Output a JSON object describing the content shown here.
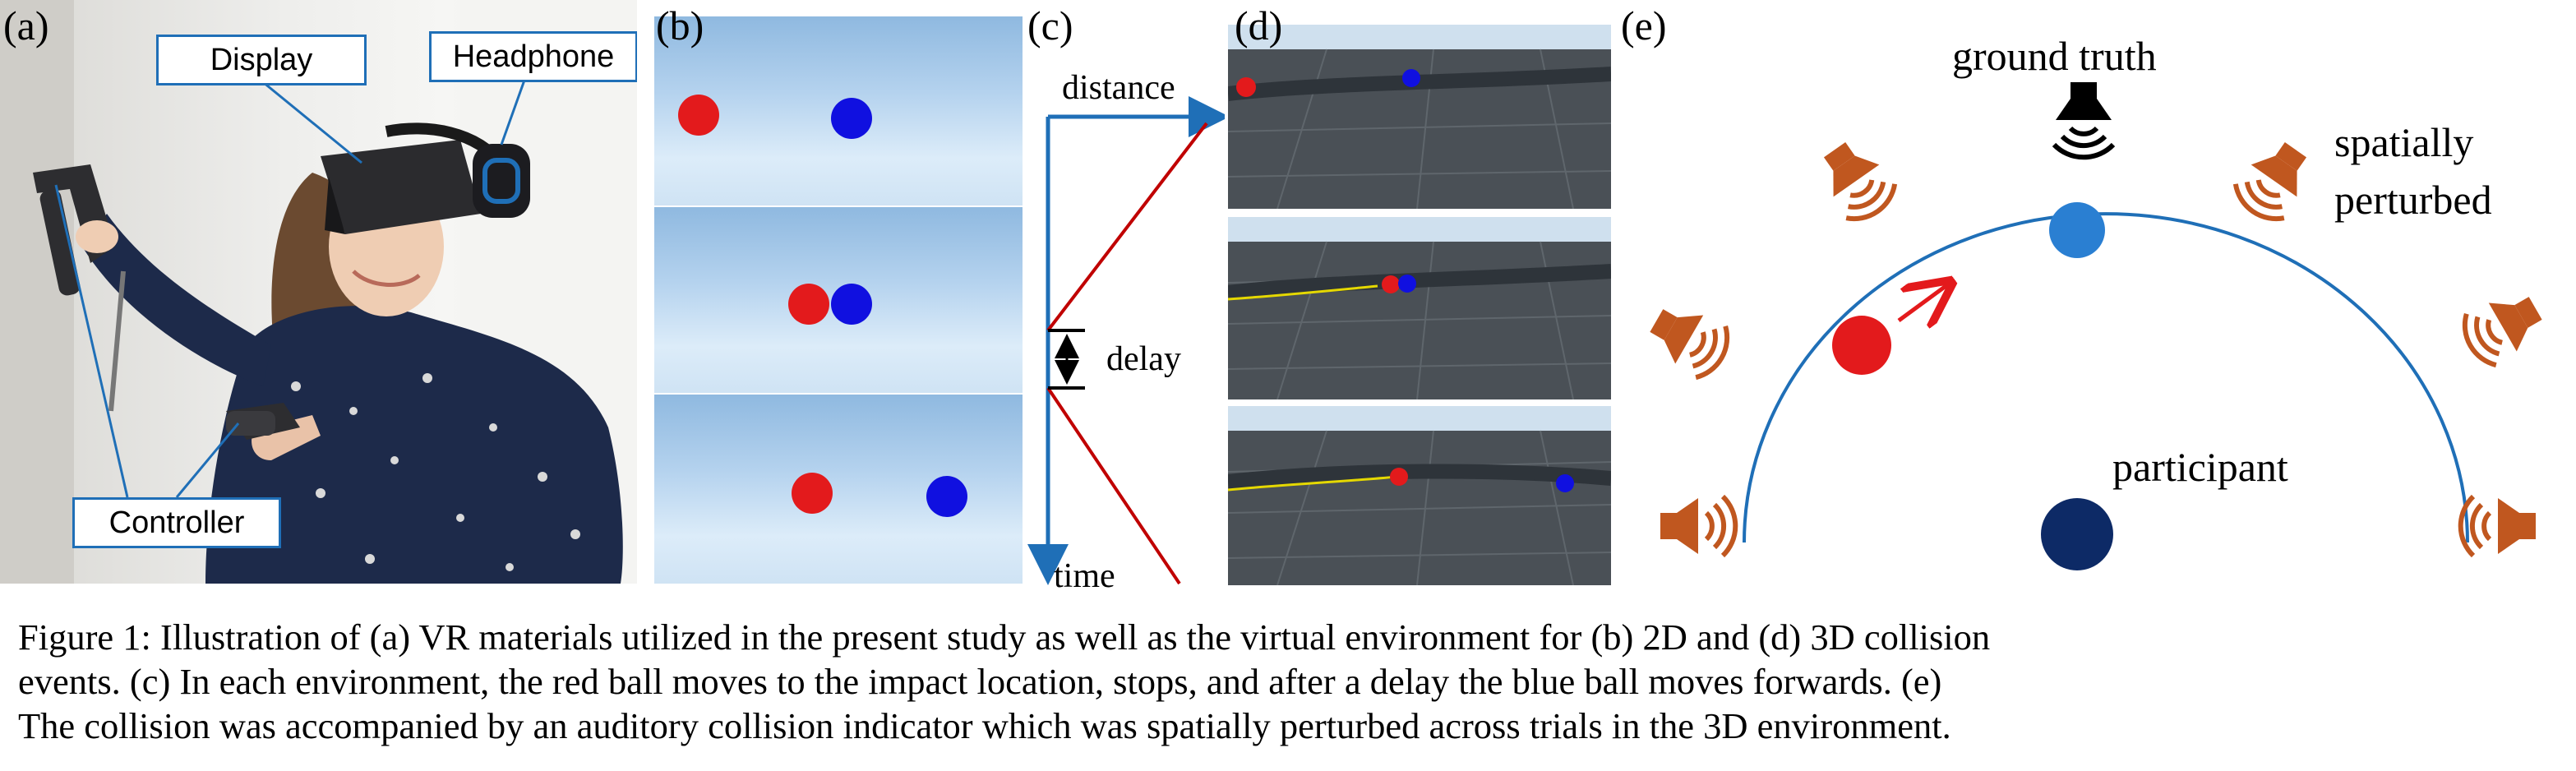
{
  "panel_labels": {
    "a": "(a)",
    "b": "(b)",
    "c": "(c)",
    "d": "(d)",
    "e": "(e)"
  },
  "panel_a": {
    "display_label": "Display",
    "headphone_label": "Headphone",
    "controller_label": "Controller"
  },
  "panel_c": {
    "distance_label": "distance",
    "delay_label": "delay",
    "time_label": "time"
  },
  "panel_e": {
    "ground_truth_label": "ground truth",
    "spatially_perturbed_line1": "spatially",
    "spatially_perturbed_line2": "perturbed",
    "participant_label": "participant"
  },
  "colors": {
    "callout_border": "#1f6fb7",
    "red_ball": "#e31a1c",
    "blue_ball": "#1010e0",
    "arc_blue": "#1f6fb7",
    "speaker_orange": "#c0571f",
    "ground_truth_ball": "#2a7fd2",
    "participant_ball": "#0d2a66"
  },
  "caption": {
    "line1": "Figure 1: Illustration of (a) VR materials utilized in the present study as well as the virtual environment for (b) 2D and (d) 3D collision",
    "line2": "events. (c) In each environment, the red ball moves to the impact location, stops, and after a delay the blue ball moves forwards. (e)",
    "line3": "The collision was accompanied by an auditory collision indicator which was spatially perturbed across trials in the 3D environment."
  }
}
